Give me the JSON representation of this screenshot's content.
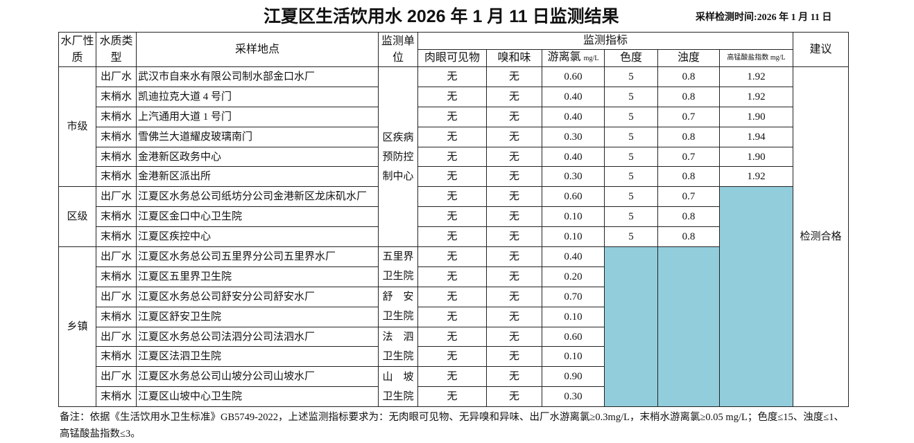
{
  "title": "江夏区生活饮用水 2026 年 1 月 11 日监测结果",
  "sampling_time": "采样检测时间:2026 年 1 月 11 日",
  "headers": {
    "plant_nature": "水厂性质",
    "water_type": "水质类型",
    "site": "采样地点",
    "unit": "监测单位",
    "indicators": "监测指标",
    "visible": "肉眼可见物",
    "odor": "嗅和味",
    "chlorine": "游离氯",
    "chlorine_unit": "mg/L",
    "color": "色度",
    "turbidity": "浊度",
    "permanganate": "高锰酸盐指数 mg/L",
    "advice": "建议"
  },
  "advice": "检测合格",
  "levels": [
    {
      "name": "市级",
      "rows": [
        {
          "type": "出厂水",
          "site": "武汉市自来水有限公司制水部金口水厂",
          "visible": "无",
          "odor": "无",
          "chlorine": "0.60",
          "color": "5",
          "turbidity": "0.8",
          "permanganate": "1.92"
        },
        {
          "type": "末梢水",
          "site": "凯迪拉克大道 4 号门",
          "visible": "无",
          "odor": "无",
          "chlorine": "0.40",
          "color": "5",
          "turbidity": "0.8",
          "permanganate": "1.92"
        },
        {
          "type": "末梢水",
          "site": "上汽通用大道 1 号门",
          "visible": "无",
          "odor": "无",
          "chlorine": "0.40",
          "color": "5",
          "turbidity": "0.7",
          "permanganate": "1.90"
        },
        {
          "type": "末梢水",
          "site": "雪佛兰大道耀皮玻璃南门",
          "visible": "无",
          "odor": "无",
          "chlorine": "0.30",
          "color": "5",
          "turbidity": "0.8",
          "permanganate": "1.94"
        },
        {
          "type": "末梢水",
          "site": "金港新区政务中心",
          "visible": "无",
          "odor": "无",
          "chlorine": "0.40",
          "color": "5",
          "turbidity": "0.7",
          "permanganate": "1.90"
        },
        {
          "type": "末梢水",
          "site": "金港新区派出所",
          "visible": "无",
          "odor": "无",
          "chlorine": "0.30",
          "color": "5",
          "turbidity": "0.8",
          "permanganate": "1.92"
        }
      ]
    },
    {
      "name": "区级",
      "rows": [
        {
          "type": "出厂水",
          "site": "江夏区水务总公司纸坊分公司金港新区龙床矶水厂",
          "visible": "无",
          "odor": "无",
          "chlorine": "0.60",
          "color": "5",
          "turbidity": "0.7",
          "permanganate": null
        },
        {
          "type": "末梢水",
          "site": "江夏区金口中心卫生院",
          "visible": "无",
          "odor": "无",
          "chlorine": "0.10",
          "color": "5",
          "turbidity": "0.8",
          "permanganate": null
        },
        {
          "type": "末梢水",
          "site": "江夏区疾控中心",
          "visible": "无",
          "odor": "无",
          "chlorine": "0.10",
          "color": "5",
          "turbidity": "0.8",
          "permanganate": null
        }
      ]
    },
    {
      "name": "乡镇",
      "rows": [
        {
          "type": "出厂水",
          "site": "江夏区水务总公司五里界分公司五里界水厂",
          "visible": "无",
          "odor": "无",
          "chlorine": "0.40",
          "color": null,
          "turbidity": null,
          "permanganate": null
        },
        {
          "type": "末梢水",
          "site": "江夏区五里界卫生院",
          "visible": "无",
          "odor": "无",
          "chlorine": "0.20",
          "color": null,
          "turbidity": null,
          "permanganate": null
        },
        {
          "type": "出厂水",
          "site": "江夏区水务总公司舒安分公司舒安水厂",
          "visible": "无",
          "odor": "无",
          "chlorine": "0.70",
          "color": null,
          "turbidity": null,
          "permanganate": null
        },
        {
          "type": "末梢水",
          "site": "江夏区舒安卫生院",
          "visible": "无",
          "odor": "无",
          "chlorine": "0.10",
          "color": null,
          "turbidity": null,
          "permanganate": null
        },
        {
          "type": "出厂水",
          "site": "江夏区水务总公司法泗分公司法泗水厂",
          "visible": "无",
          "odor": "无",
          "chlorine": "0.60",
          "color": null,
          "turbidity": null,
          "permanganate": null
        },
        {
          "type": "末梢水",
          "site": "江夏区法泗卫生院",
          "visible": "无",
          "odor": "无",
          "chlorine": "0.10",
          "color": null,
          "turbidity": null,
          "permanganate": null
        },
        {
          "type": "出厂水",
          "site": "江夏区水务总公司山坡分公司山坡水厂",
          "visible": "无",
          "odor": "无",
          "chlorine": "0.90",
          "color": null,
          "turbidity": null,
          "permanganate": null
        },
        {
          "type": "末梢水",
          "site": "江夏区山坡中心卫生院",
          "visible": "无",
          "odor": "无",
          "chlorine": "0.30",
          "color": null,
          "turbidity": null,
          "permanganate": null
        }
      ]
    }
  ],
  "units": [
    {
      "name": "区疾病预防控制中心",
      "rows": 9
    },
    {
      "name": "五里界卫生院",
      "rows": 2
    },
    {
      "name": "舒　安卫生院",
      "rows": 2
    },
    {
      "name": "法　泗卫生院",
      "rows": 2
    },
    {
      "name": "山　坡卫生院",
      "rows": 2
    }
  ],
  "highlight_color": "#92cddc",
  "note": "备注：依据《生活饮用水卫生标准》GB5749-2022，上述监测指标要求为：无肉眼可见物、无异嗅和异味、出厂水游离氯≥0.3mg/L，末梢水游离氯≥0.05 mg/L；色度≤15、浊度≤1、高锰酸盐指数≤3。"
}
